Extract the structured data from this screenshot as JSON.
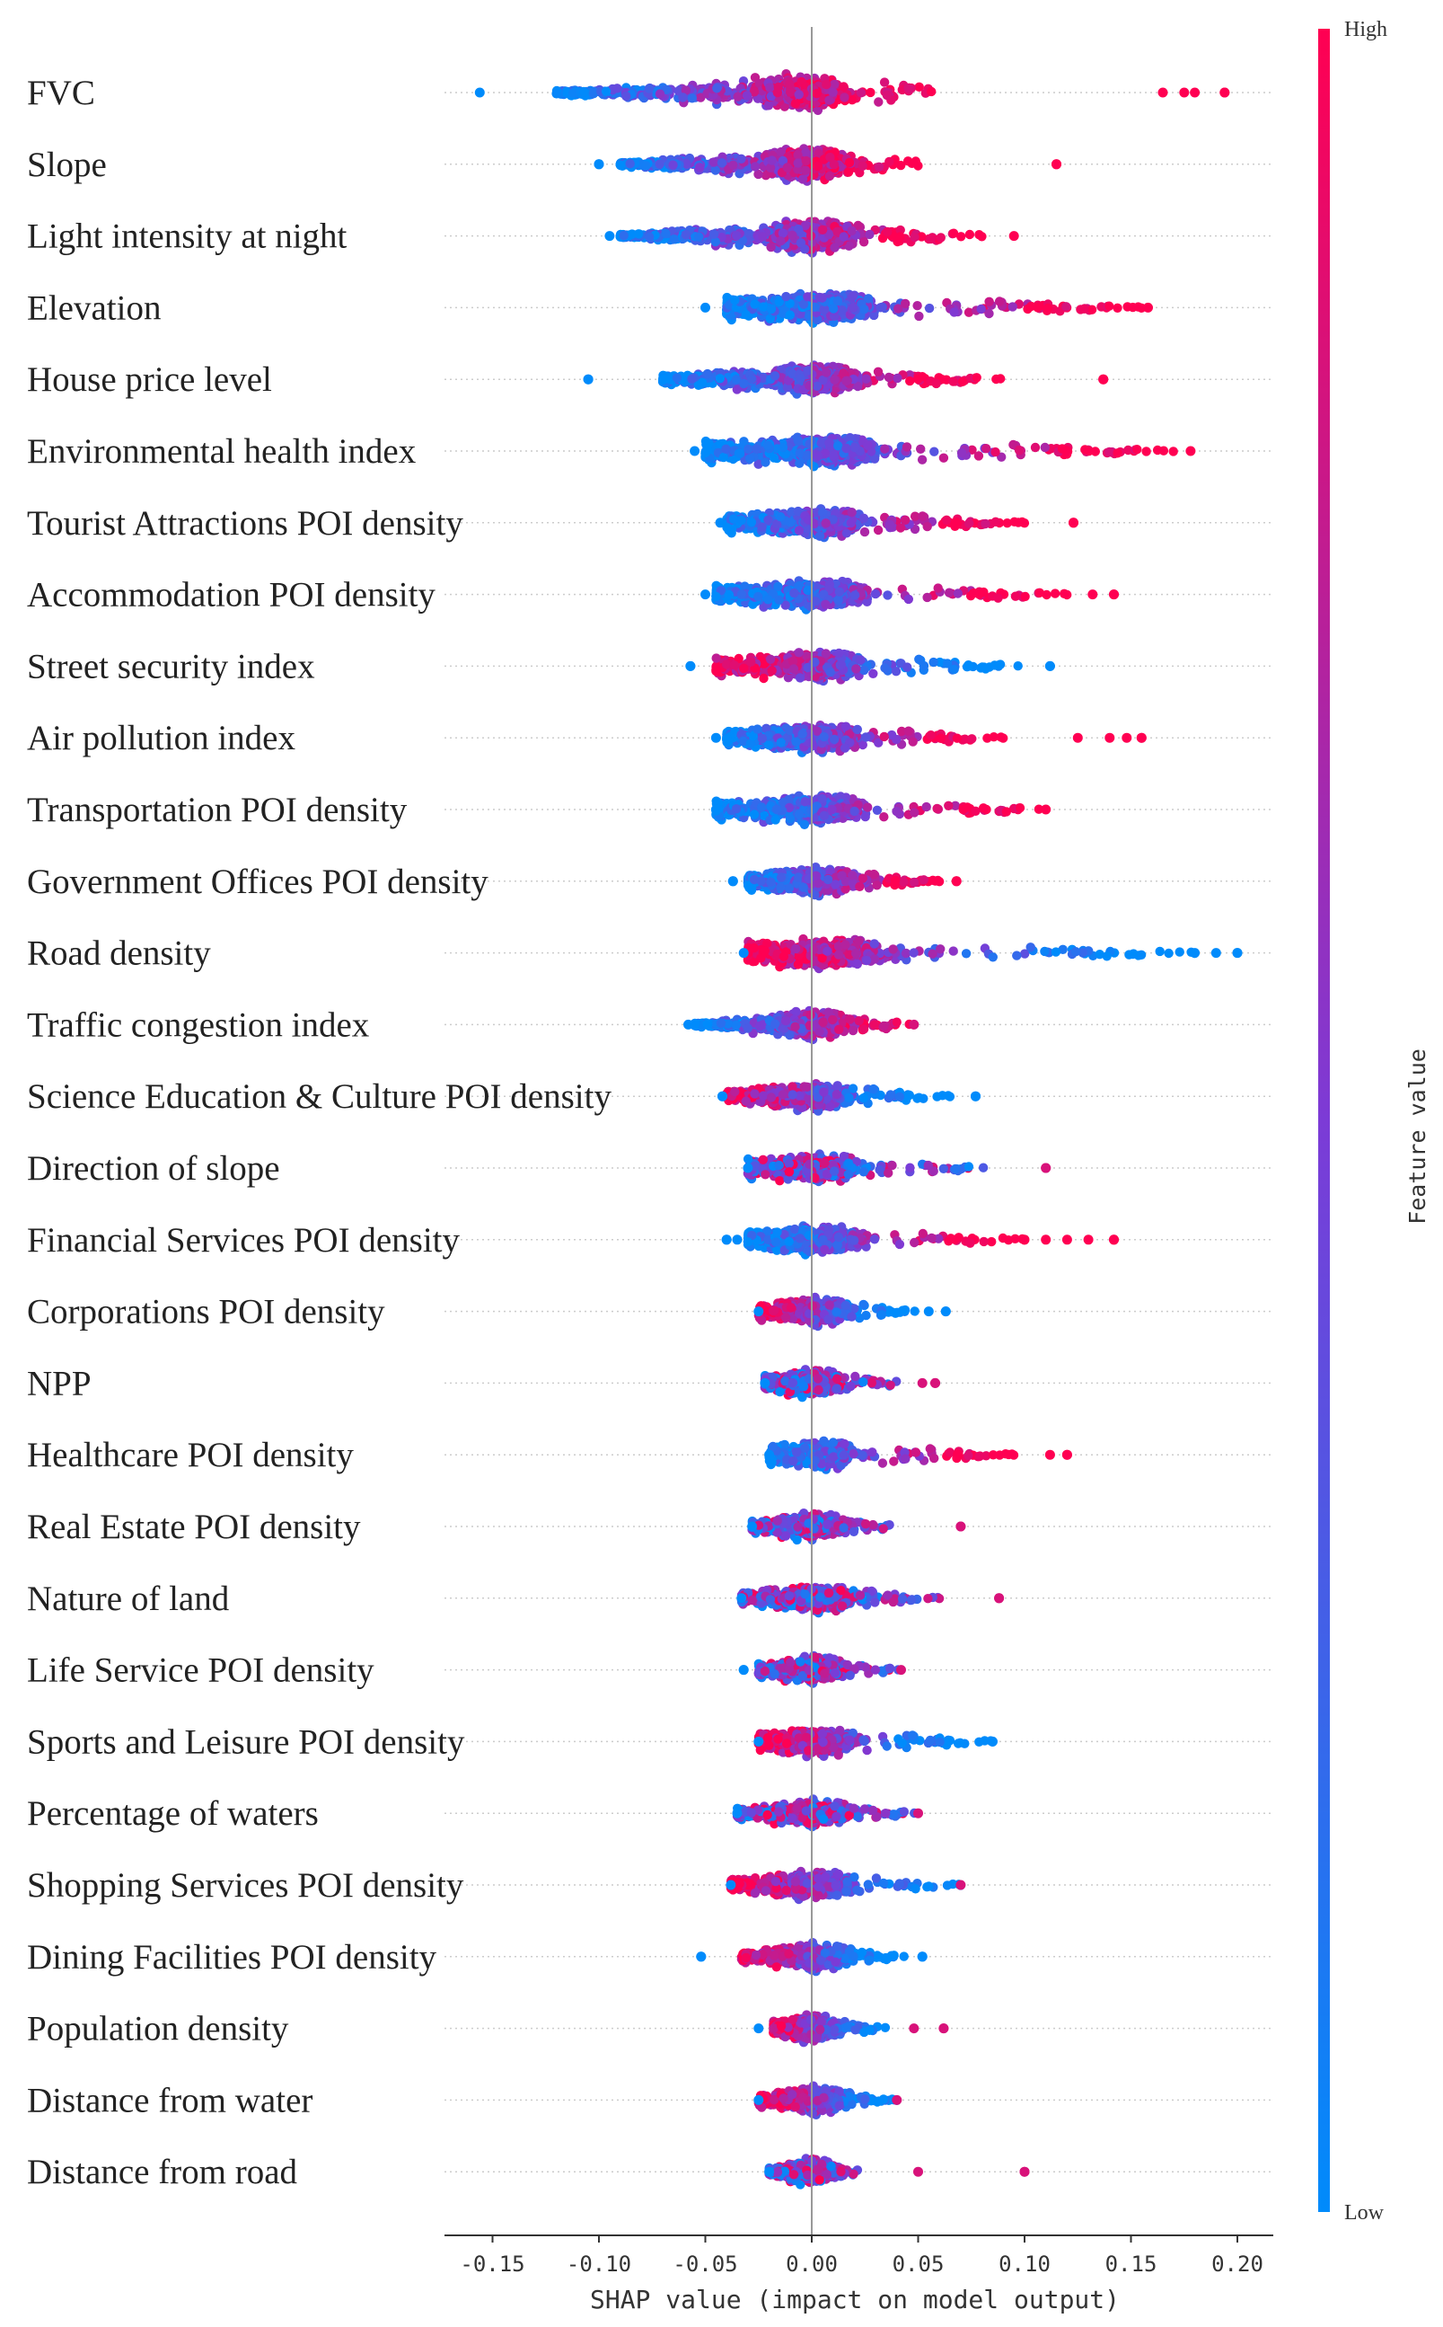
{
  "chart_data": {
    "type": "scatter",
    "subtype": "shap_beeswarm",
    "title": "",
    "xlabel": "SHAP value (impact on model output)",
    "xlim": [
      -0.17,
      0.22
    ],
    "xticks": [
      -0.15,
      -0.1,
      -0.05,
      0.0,
      0.05,
      0.1,
      0.15,
      0.2
    ],
    "xtick_labels": [
      "-0.15",
      "-0.10",
      "-0.05",
      "0.00",
      "0.05",
      "0.10",
      "0.15",
      "0.20"
    ],
    "colorbar": {
      "title": "Feature value",
      "high_label": "High",
      "low_label": "Low",
      "high_color": "#ff0052",
      "mid_color": "#7c3bd6",
      "low_color": "#008bfb"
    },
    "features": [
      {
        "name": "FVC",
        "min": -0.156,
        "max": 0.194,
        "bulk_low": -0.12,
        "bulk_high": 0.06,
        "skew": "high-right",
        "outliers": [
          0.165,
          0.175,
          0.18,
          0.194
        ]
      },
      {
        "name": "Slope",
        "min": -0.1,
        "max": 0.115,
        "bulk_low": -0.09,
        "bulk_high": 0.05,
        "skew": "high-right",
        "outliers": [
          -0.1,
          0.115
        ]
      },
      {
        "name": "Light intensity at night",
        "min": -0.095,
        "max": 0.095,
        "bulk_low": -0.09,
        "bulk_high": 0.08,
        "skew": "high-right",
        "outliers": []
      },
      {
        "name": "Elevation",
        "min": -0.05,
        "max": 0.158,
        "bulk_low": -0.04,
        "bulk_high": 0.155,
        "skew": "high-right",
        "outliers": []
      },
      {
        "name": "House price level",
        "min": -0.105,
        "max": 0.137,
        "bulk_low": -0.07,
        "bulk_high": 0.09,
        "skew": "high-right",
        "outliers": [
          -0.105,
          0.137
        ]
      },
      {
        "name": "Environmental health index",
        "min": -0.055,
        "max": 0.178,
        "bulk_low": -0.05,
        "bulk_high": 0.17,
        "skew": "high-right",
        "outliers": []
      },
      {
        "name": "Tourist Attractions POI density",
        "min": -0.043,
        "max": 0.123,
        "bulk_low": -0.04,
        "bulk_high": 0.1,
        "skew": "high-right",
        "outliers": [
          0.123
        ]
      },
      {
        "name": "Accommodation POI density",
        "min": -0.05,
        "max": 0.142,
        "bulk_low": -0.045,
        "bulk_high": 0.12,
        "skew": "high-right",
        "outliers": [
          0.132,
          0.142
        ]
      },
      {
        "name": "Street security index",
        "min": -0.057,
        "max": 0.112,
        "bulk_low": -0.045,
        "bulk_high": 0.1,
        "skew": "low-right",
        "outliers": [
          -0.057,
          0.112
        ]
      },
      {
        "name": "Air pollution index",
        "min": -0.045,
        "max": 0.155,
        "bulk_low": -0.04,
        "bulk_high": 0.09,
        "skew": "high-right",
        "outliers": [
          0.125,
          0.14,
          0.148,
          0.155
        ]
      },
      {
        "name": "Transportation POI density",
        "min": -0.045,
        "max": 0.11,
        "bulk_low": -0.045,
        "bulk_high": 0.11,
        "skew": "high-right",
        "outliers": []
      },
      {
        "name": "Government Offices POI density",
        "min": -0.037,
        "max": 0.068,
        "bulk_low": -0.03,
        "bulk_high": 0.06,
        "skew": "high-right",
        "outliers": [
          -0.037,
          0.068
        ]
      },
      {
        "name": "Road density",
        "min": -0.032,
        "max": 0.2,
        "bulk_low": -0.03,
        "bulk_high": 0.18,
        "skew": "low-right",
        "outliers": [
          0.18,
          0.19,
          0.2
        ]
      },
      {
        "name": "Traffic congestion index",
        "min": -0.058,
        "max": 0.048,
        "bulk_low": -0.055,
        "bulk_high": 0.048,
        "skew": "low-left",
        "outliers": []
      },
      {
        "name": "Science Education & Culture POI density",
        "min": -0.042,
        "max": 0.077,
        "bulk_low": -0.04,
        "bulk_high": 0.065,
        "skew": "low-right",
        "outliers": [
          -0.042,
          0.077
        ]
      },
      {
        "name": "Direction of slope",
        "min": -0.03,
        "max": 0.11,
        "bulk_low": -0.03,
        "bulk_high": 0.083,
        "skew": "mixed",
        "outliers": [
          0.11
        ]
      },
      {
        "name": "Financial Services POI density",
        "min": -0.04,
        "max": 0.142,
        "bulk_low": -0.03,
        "bulk_high": 0.1,
        "skew": "high-right",
        "outliers": [
          -0.04,
          -0.035,
          0.1,
          0.11,
          0.12,
          0.13,
          0.142
        ]
      },
      {
        "name": "Corporations POI density",
        "min": -0.025,
        "max": 0.063,
        "bulk_low": -0.025,
        "bulk_high": 0.05,
        "skew": "low-right",
        "outliers": [
          0.055,
          0.063
        ]
      },
      {
        "name": "NPP",
        "min": -0.022,
        "max": 0.058,
        "bulk_low": -0.022,
        "bulk_high": 0.045,
        "skew": "mixed",
        "outliers": [
          0.052,
          0.058
        ]
      },
      {
        "name": "Healthcare POI density",
        "min": -0.02,
        "max": 0.12,
        "bulk_low": -0.02,
        "bulk_high": 0.095,
        "skew": "high-right",
        "outliers": [
          0.112,
          0.12
        ]
      },
      {
        "name": "Real Estate POI density",
        "min": -0.028,
        "max": 0.07,
        "bulk_low": -0.028,
        "bulk_high": 0.042,
        "skew": "mixed",
        "outliers": [
          0.07
        ]
      },
      {
        "name": "Nature of land",
        "min": -0.033,
        "max": 0.088,
        "bulk_low": -0.033,
        "bulk_high": 0.06,
        "skew": "mixed",
        "outliers": [
          0.088
        ]
      },
      {
        "name": "Life Service POI density",
        "min": -0.032,
        "max": 0.042,
        "bulk_low": -0.025,
        "bulk_high": 0.042,
        "skew": "mixed",
        "outliers": [
          -0.032
        ]
      },
      {
        "name": "Sports and Leisure POI density",
        "min": -0.025,
        "max": 0.085,
        "bulk_low": -0.025,
        "bulk_high": 0.085,
        "skew": "low-right",
        "outliers": []
      },
      {
        "name": "Percentage of waters",
        "min": -0.035,
        "max": 0.05,
        "bulk_low": -0.035,
        "bulk_high": 0.05,
        "skew": "mixed",
        "outliers": []
      },
      {
        "name": "Shopping Services POI density",
        "min": -0.038,
        "max": 0.07,
        "bulk_low": -0.038,
        "bulk_high": 0.07,
        "skew": "high-left",
        "outliers": []
      },
      {
        "name": "Dining Facilities POI density",
        "min": -0.052,
        "max": 0.052,
        "bulk_low": -0.033,
        "bulk_high": 0.045,
        "skew": "low-right",
        "outliers": [
          -0.052,
          0.052
        ]
      },
      {
        "name": "Population density",
        "min": -0.025,
        "max": 0.062,
        "bulk_low": -0.018,
        "bulk_high": 0.035,
        "skew": "high-left",
        "outliers": [
          0.048,
          0.062
        ]
      },
      {
        "name": "Distance from water",
        "min": -0.025,
        "max": 0.04,
        "bulk_low": -0.025,
        "bulk_high": 0.04,
        "skew": "high-left",
        "outliers": []
      },
      {
        "name": "Distance from road",
        "min": -0.02,
        "max": 0.1,
        "bulk_low": -0.02,
        "bulk_high": 0.025,
        "skew": "mixed",
        "outliers": [
          0.05,
          0.1
        ]
      }
    ]
  }
}
